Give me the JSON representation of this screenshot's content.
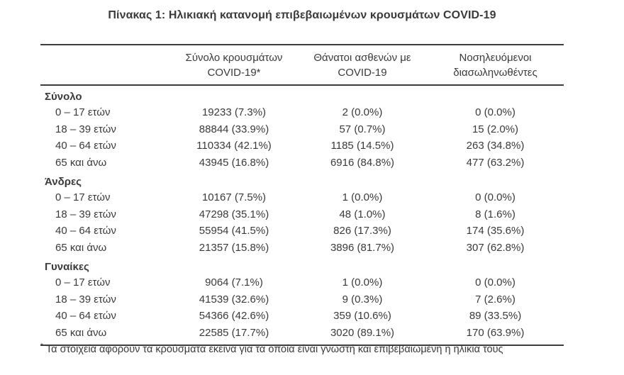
{
  "title": "Πίνακας 1: Ηλικιακή κατανομή επιβεβαιωμένων κρουσμάτων COVID-19",
  "columns": [
    {
      "line1": "Σύνολο κρουσμάτων",
      "line2": "COVID-19*"
    },
    {
      "line1": "Θάνατοι ασθενών με",
      "line2": "COVID-19"
    },
    {
      "line1": "Νοσηλευόμενοι",
      "line2": "διασωληνωθέντες"
    }
  ],
  "sections": [
    {
      "label": "Σύνολο",
      "rows": [
        {
          "age": "0 – 17 ετών",
          "cases": "19233 (7.3%)",
          "deaths": "2 (0.0%)",
          "intubated": "0 (0.0%)"
        },
        {
          "age": "18 – 39 ετών",
          "cases": "88844 (33.9%)",
          "deaths": "57 (0.7%)",
          "intubated": "15 (2.0%)"
        },
        {
          "age": "40 – 64 ετών",
          "cases": "110334 (42.1%)",
          "deaths": "1185 (14.5%)",
          "intubated": "263 (34.8%)"
        },
        {
          "age": "65 και άνω",
          "cases": "43945 (16.8%)",
          "deaths": "6916 (84.8%)",
          "intubated": "477 (63.2%)"
        }
      ]
    },
    {
      "label": "Άνδρες",
      "rows": [
        {
          "age": "0 – 17 ετών",
          "cases": "10167 (7.5%)",
          "deaths": "1 (0.0%)",
          "intubated": "0 (0.0%)"
        },
        {
          "age": "18 – 39 ετών",
          "cases": "47298 (35.1%)",
          "deaths": "48 (1.0%)",
          "intubated": "8 (1.6%)"
        },
        {
          "age": "40 – 64 ετών",
          "cases": "55954 (41.5%)",
          "deaths": "826 (17.3%)",
          "intubated": "174 (35.6%)"
        },
        {
          "age": "65 και άνω",
          "cases": "21357 (15.8%)",
          "deaths": "3896 (81.7%)",
          "intubated": "307 (62.8%)"
        }
      ]
    },
    {
      "label": "Γυναίκες",
      "rows": [
        {
          "age": "0 – 17 ετών",
          "cases": "9064 (7.1%)",
          "deaths": "1 (0.0%)",
          "intubated": "0 (0.0%)"
        },
        {
          "age": "18 – 39 ετών",
          "cases": "41539 (32.6%)",
          "deaths": "9 (0.3%)",
          "intubated": "7 (2.6%)"
        },
        {
          "age": "40 – 64 ετών",
          "cases": "54366 (42.6%)",
          "deaths": "359 (10.6%)",
          "intubated": "89 (33.5%)"
        },
        {
          "age": "65 και άνω",
          "cases": "22585 (17.7%)",
          "deaths": "3020 (89.1%)",
          "intubated": "170 (63.9%)"
        }
      ]
    }
  ],
  "footnote": {
    "marker": "*",
    "text": "Τα στοιχεία αφορούν τα κρούσματα εκείνα για τα οποία είναι γνωστή και επιβεβαιωμένη η ηλικία τους"
  },
  "colors": {
    "text": "#3a3a3a",
    "rule": "#3c3c3c",
    "background": "#ffffff"
  }
}
